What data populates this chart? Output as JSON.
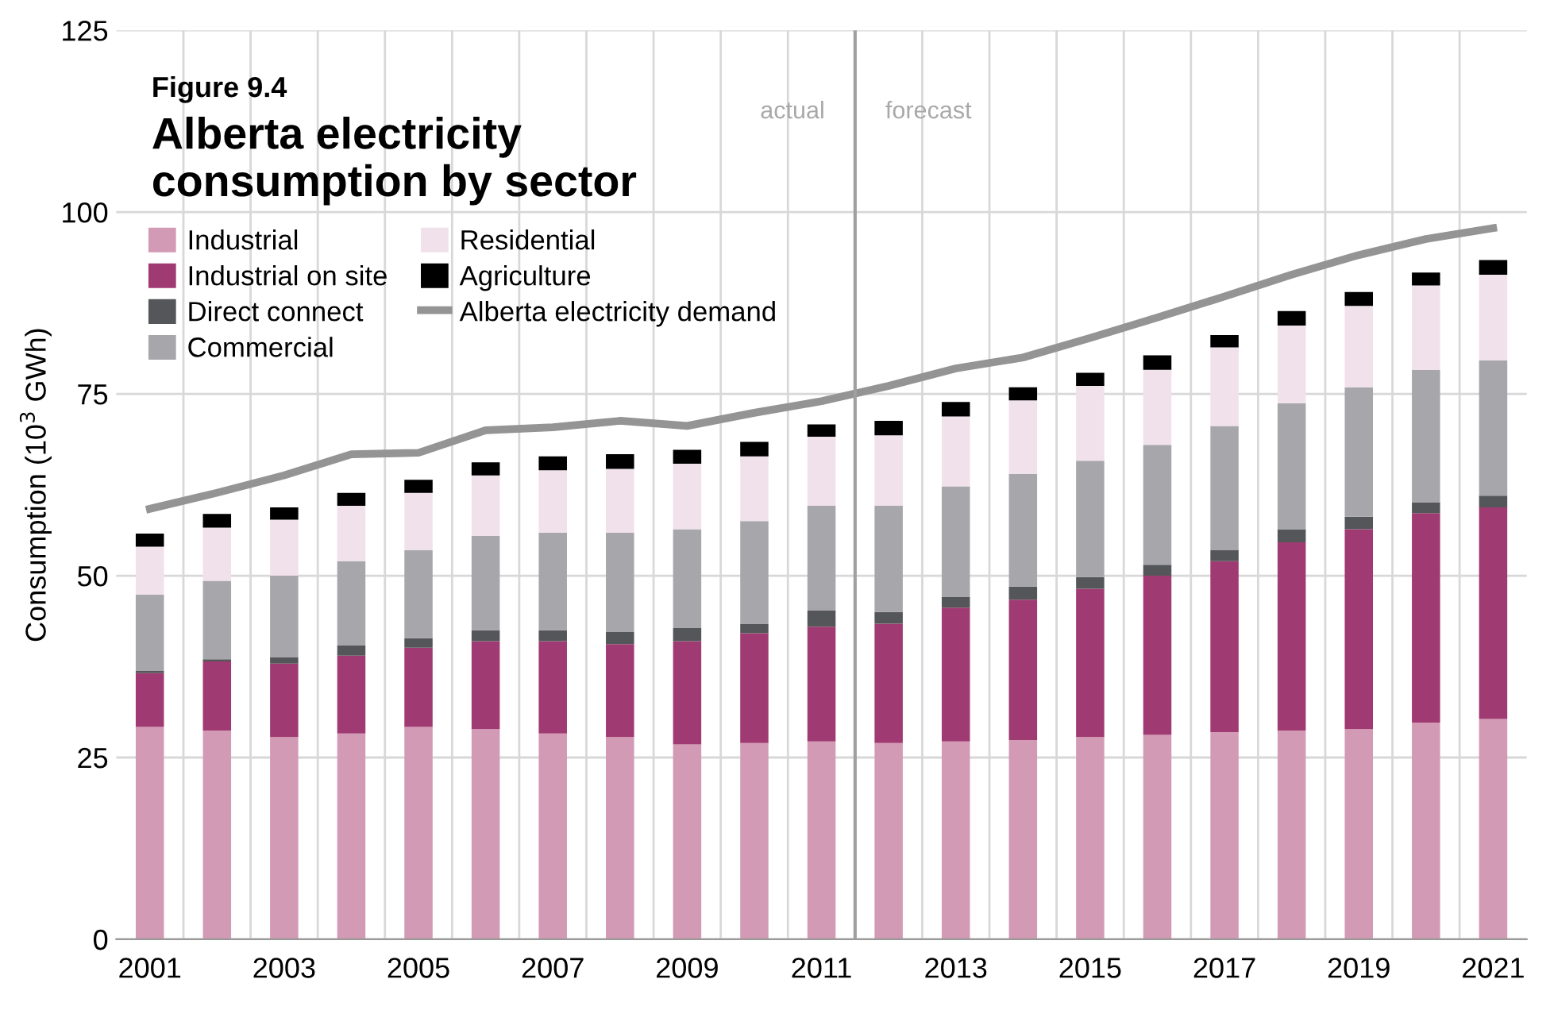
{
  "chart_data": {
    "type": "bar",
    "stacked": true,
    "subtitle": "Figure 9.4",
    "title": "Alberta electricity consumption by sector",
    "ylabel": "Consumption (10$^{3}$ GWh)",
    "x": [
      2001,
      2002,
      2003,
      2004,
      2005,
      2006,
      2007,
      2008,
      2009,
      2010,
      2011,
      2012,
      2013,
      2014,
      2015,
      2016,
      2017,
      2018,
      2019,
      2020,
      2021
    ],
    "xlim": [
      2000.5,
      2021.5
    ],
    "xticks": [
      2001,
      2003,
      2005,
      2007,
      2009,
      2011,
      2013,
      2015,
      2017,
      2019,
      2021,
      {
        "value": 2001.5,
        "label": null
      },
      {
        "value": 2002.5,
        "label": null
      },
      {
        "value": 2003.5,
        "label": null
      },
      {
        "value": 2004.5,
        "label": null
      },
      {
        "value": 2005.5,
        "label": null
      },
      {
        "value": 2006.5,
        "label": null
      },
      {
        "value": 2007.5,
        "label": null
      },
      {
        "value": 2008.5,
        "label": null
      },
      {
        "value": 2009.5,
        "label": null
      },
      {
        "value": 2010.5,
        "label": null
      },
      {
        "value": 2012.5,
        "label": null
      },
      {
        "value": 2013.5,
        "label": null
      },
      {
        "value": 2014.5,
        "label": null
      },
      {
        "value": 2015.5,
        "label": null
      },
      {
        "value": 2016.5,
        "label": null
      },
      {
        "value": 2017.5,
        "label": null
      },
      {
        "value": 2018.5,
        "label": null
      },
      {
        "value": 2019.5,
        "label": null
      },
      {
        "value": 2020.5,
        "label": null
      }
    ],
    "ylim": [
      0,
      125
    ],
    "yticks": [
      0,
      25,
      50,
      75,
      100,
      125
    ],
    "grid": true,
    "legend": "top left",
    "series": [
      {
        "name": "Industrial",
        "color": "#d39ab5",
        "values": [
          29.2,
          28.7,
          27.8,
          28.3,
          29.2,
          28.9,
          28.3,
          27.8,
          26.8,
          27.0,
          27.2,
          27.0,
          27.2,
          27.4,
          27.8,
          28.1,
          28.5,
          28.7,
          28.9,
          29.8,
          30.3
        ]
      },
      {
        "name": "Industrial on site",
        "color": "#a03a72",
        "values": [
          7.4,
          9.5,
          10.1,
          10.7,
          10.9,
          12.1,
          12.7,
          12.8,
          14.2,
          15.1,
          15.8,
          16.4,
          18.4,
          19.3,
          20.4,
          21.9,
          23.5,
          25.9,
          27.5,
          28.8,
          29.1
        ]
      },
      {
        "name": "Direct connect",
        "color": "#55565a",
        "values": [
          0.3,
          0.3,
          0.9,
          1.4,
          1.3,
          1.5,
          1.5,
          1.7,
          1.8,
          1.3,
          2.2,
          1.6,
          1.5,
          1.8,
          1.6,
          1.5,
          1.5,
          1.8,
          1.7,
          1.5,
          1.6
        ]
      },
      {
        "name": "Commercial",
        "color": "#a7a6ab",
        "values": [
          10.5,
          10.8,
          11.2,
          11.6,
          12.1,
          13.0,
          13.4,
          13.6,
          13.6,
          14.1,
          14.4,
          14.6,
          15.2,
          15.5,
          16.0,
          16.5,
          17.1,
          17.3,
          17.8,
          18.2,
          18.6
        ]
      },
      {
        "name": "Residential",
        "color": "#f1e1ea",
        "values": [
          6.6,
          7.3,
          7.7,
          7.6,
          7.9,
          8.3,
          8.6,
          8.8,
          9.0,
          8.9,
          9.5,
          9.7,
          9.6,
          10.1,
          10.3,
          10.3,
          10.8,
          10.7,
          11.2,
          11.6,
          11.8
        ]
      },
      {
        "name": "Agriculture",
        "color": "#000000",
        "values": [
          1.8,
          1.9,
          1.7,
          1.8,
          1.8,
          1.8,
          1.9,
          2.0,
          1.9,
          2.0,
          1.7,
          2.0,
          2.0,
          1.8,
          1.8,
          2.0,
          1.7,
          2.0,
          1.9,
          1.8,
          2.0
        ]
      },
      {
        "name": "Alberta electricity demand",
        "type": "line",
        "color": "#949494",
        "values": [
          59.2,
          61.4,
          63.8,
          66.7,
          66.9,
          70.0,
          70.4,
          71.3,
          70.6,
          72.4,
          74.0,
          76.1,
          78.5,
          80.0,
          82.7,
          85.5,
          88.4,
          91.4,
          94.1,
          96.3,
          97.8
        ]
      }
    ],
    "ref_lines": [
      {
        "axis": "x",
        "value": 2011.5,
        "color": "#a0a0a0"
      }
    ],
    "annotations": [
      "actual",
      "forecast"
    ]
  }
}
